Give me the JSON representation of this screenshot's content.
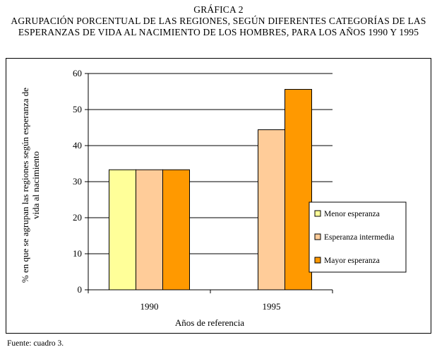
{
  "header": {
    "label": "GRÁFICA 2",
    "title_line1": "AGRUPACIÓN PORCENTUAL DE LAS REGIONES, SEGÚN DIFERENTES CATEGORÍAS DE LAS",
    "title_line2": "ESPERANZAS DE VIDA AL NACIMIENTO DE LOS HOMBRES, PARA LOS AÑOS 1990 Y 1995"
  },
  "source": "Fuente: cuadro 3.",
  "chart_data": {
    "type": "bar",
    "categories": [
      "1990",
      "1995"
    ],
    "series": [
      {
        "name": "Menor esperanza",
        "values": [
          33.3,
          0
        ],
        "color": "#FFFF99"
      },
      {
        "name": "Esperanza intermedia",
        "values": [
          33.3,
          44.4
        ],
        "color": "#FFCC99"
      },
      {
        "name": "Mayor esperanza",
        "values": [
          33.3,
          55.6
        ],
        "color": "#FF9900"
      }
    ],
    "xlabel": "Años de referencia",
    "ylabel_line1": "% en que se agrupan las regiones según esperanza de",
    "ylabel_line2": "vida al nacimiento",
    "ylim": [
      0,
      60
    ],
    "yticks": [
      0,
      10,
      20,
      30,
      40,
      50,
      60
    ],
    "grid": true,
    "legend_position": "right"
  }
}
